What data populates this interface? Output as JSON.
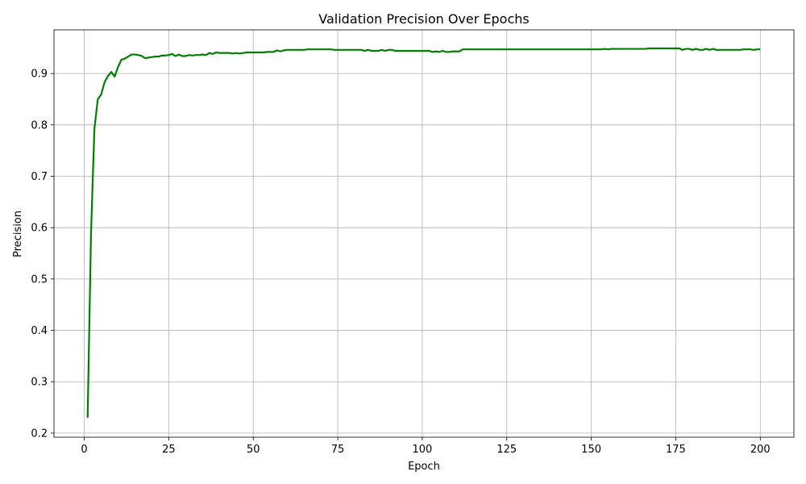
{
  "chart_data": {
    "type": "line",
    "title": "Validation Precision Over Epochs",
    "x_label": "Epoch",
    "y_label": "Precision",
    "x": [
      1,
      2,
      3,
      4,
      5,
      6,
      7,
      8,
      9,
      10,
      11,
      12,
      13,
      14,
      15,
      16,
      17,
      18,
      19,
      20,
      21,
      22,
      23,
      24,
      25,
      26,
      27,
      28,
      29,
      30,
      31,
      32,
      33,
      34,
      35,
      36,
      37,
      38,
      39,
      40,
      41,
      42,
      43,
      44,
      45,
      46,
      47,
      48,
      49,
      50,
      51,
      52,
      53,
      54,
      55,
      56,
      57,
      58,
      59,
      60,
      61,
      62,
      63,
      64,
      65,
      66,
      67,
      68,
      69,
      70,
      71,
      72,
      73,
      74,
      75,
      76,
      77,
      78,
      79,
      80,
      81,
      82,
      83,
      84,
      85,
      86,
      87,
      88,
      89,
      90,
      91,
      92,
      93,
      94,
      95,
      96,
      97,
      98,
      99,
      100,
      101,
      102,
      103,
      104,
      105,
      106,
      107,
      108,
      109,
      110,
      111,
      112,
      113,
      114,
      115,
      116,
      117,
      118,
      119,
      120,
      121,
      122,
      123,
      124,
      125,
      126,
      127,
      128,
      129,
      130,
      131,
      132,
      133,
      134,
      135,
      136,
      137,
      138,
      139,
      140,
      141,
      142,
      143,
      144,
      145,
      146,
      147,
      148,
      149,
      150,
      151,
      152,
      153,
      154,
      155,
      156,
      157,
      158,
      159,
      160,
      161,
      162,
      163,
      164,
      165,
      166,
      167,
      168,
      169,
      170,
      171,
      172,
      173,
      174,
      175,
      176,
      177,
      178,
      179,
      180,
      181,
      182,
      183,
      184,
      185,
      186,
      187,
      188,
      189,
      190,
      191,
      192,
      193,
      194,
      195,
      196,
      197,
      198,
      199,
      200
    ],
    "series": [
      {
        "color": "#008000",
        "values": [
          0.23,
          0.588,
          0.792,
          0.85,
          0.859,
          0.883,
          0.895,
          0.903,
          0.894,
          0.913,
          0.927,
          0.929,
          0.933,
          0.937,
          0.937,
          0.936,
          0.934,
          0.93,
          0.931,
          0.932,
          0.933,
          0.933,
          0.935,
          0.935,
          0.936,
          0.938,
          0.934,
          0.937,
          0.934,
          0.934,
          0.936,
          0.935,
          0.936,
          0.936,
          0.937,
          0.936,
          0.94,
          0.938,
          0.941,
          0.94,
          0.94,
          0.94,
          0.94,
          0.939,
          0.94,
          0.939,
          0.94,
          0.941,
          0.941,
          0.941,
          0.941,
          0.941,
          0.941,
          0.942,
          0.942,
          0.942,
          0.945,
          0.943,
          0.945,
          0.946,
          0.946,
          0.946,
          0.946,
          0.946,
          0.946,
          0.947,
          0.947,
          0.947,
          0.947,
          0.947,
          0.947,
          0.947,
          0.947,
          0.946,
          0.946,
          0.946,
          0.946,
          0.946,
          0.946,
          0.946,
          0.946,
          0.946,
          0.944,
          0.946,
          0.944,
          0.944,
          0.944,
          0.946,
          0.944,
          0.946,
          0.946,
          0.944,
          0.944,
          0.944,
          0.944,
          0.944,
          0.944,
          0.944,
          0.944,
          0.944,
          0.944,
          0.944,
          0.942,
          0.943,
          0.942,
          0.944,
          0.942,
          0.942,
          0.943,
          0.943,
          0.943,
          0.947,
          0.947,
          0.947,
          0.947,
          0.947,
          0.947,
          0.947,
          0.947,
          0.947,
          0.947,
          0.947,
          0.947,
          0.947,
          0.947,
          0.947,
          0.947,
          0.947,
          0.947,
          0.947,
          0.947,
          0.947,
          0.947,
          0.947,
          0.947,
          0.947,
          0.947,
          0.947,
          0.947,
          0.947,
          0.947,
          0.947,
          0.947,
          0.947,
          0.947,
          0.947,
          0.947,
          0.947,
          0.947,
          0.947,
          0.947,
          0.947,
          0.947,
          0.948,
          0.947,
          0.948,
          0.948,
          0.948,
          0.948,
          0.948,
          0.948,
          0.948,
          0.948,
          0.948,
          0.948,
          0.948,
          0.949,
          0.949,
          0.949,
          0.949,
          0.949,
          0.949,
          0.949,
          0.949,
          0.949,
          0.949,
          0.946,
          0.948,
          0.948,
          0.946,
          0.948,
          0.946,
          0.946,
          0.948,
          0.946,
          0.948,
          0.946,
          0.946,
          0.946,
          0.946,
          0.946,
          0.946,
          0.946,
          0.946,
          0.947,
          0.947,
          0.947,
          0.946,
          0.947,
          0.947
        ]
      }
    ],
    "xlim": [
      -8.95,
      209.95
    ],
    "ylim": [
      0.192,
      0.985
    ],
    "xticks": [
      0,
      25,
      50,
      75,
      100,
      125,
      150,
      175,
      200
    ],
    "yticks": [
      0.2,
      0.3,
      0.4,
      0.5,
      0.6,
      0.7,
      0.8,
      0.9
    ],
    "grid": true
  }
}
